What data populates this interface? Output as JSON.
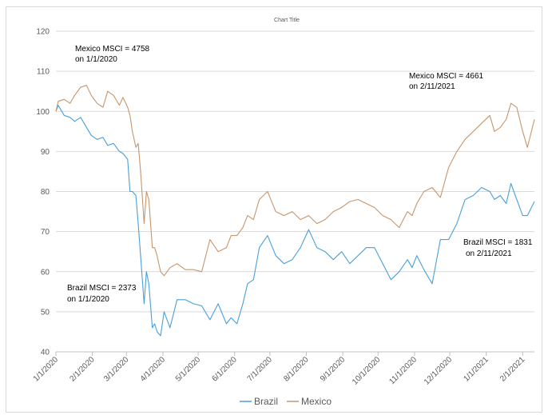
{
  "chart_data": {
    "type": "line",
    "title": "Chart Title",
    "xlabel": "",
    "ylabel": "",
    "ylim": [
      40,
      120
    ],
    "yticks": [
      40,
      50,
      60,
      70,
      80,
      90,
      100,
      110,
      120
    ],
    "x_tick_labels": [
      "1/1/2020",
      "2/1/2020",
      "3/1/2020",
      "4/1/2020",
      "5/1/2020",
      "6/1/2020",
      "7/1/2020",
      "8/1/2020",
      "9/1/2020",
      "10/1/2020",
      "11/1/2020",
      "12/1/2020",
      "1/1/2021",
      "2/1/2021"
    ],
    "x_start": "2020-01-01",
    "x_end": "2021-02-11",
    "grid": true,
    "legend_position": "bottom",
    "colors": {
      "Brazil": "#4a9fd8",
      "Mexico": "#c8956a"
    },
    "series": [
      {
        "name": "Brazil",
        "x": [
          "2020-01-01",
          "2020-01-03",
          "2020-01-08",
          "2020-01-13",
          "2020-01-17",
          "2020-01-22",
          "2020-01-27",
          "2020-01-31",
          "2020-02-05",
          "2020-02-10",
          "2020-02-14",
          "2020-02-19",
          "2020-02-24",
          "2020-02-27",
          "2020-03-02",
          "2020-03-04",
          "2020-03-06",
          "2020-03-09",
          "2020-03-11",
          "2020-03-13",
          "2020-03-16",
          "2020-03-18",
          "2020-03-20",
          "2020-03-23",
          "2020-03-25",
          "2020-03-27",
          "2020-03-30",
          "2020-04-02",
          "2020-04-07",
          "2020-04-13",
          "2020-04-20",
          "2020-04-27",
          "2020-05-04",
          "2020-05-11",
          "2020-05-18",
          "2020-05-25",
          "2020-05-29",
          "2020-06-03",
          "2020-06-08",
          "2020-06-12",
          "2020-06-17",
          "2020-06-22",
          "2020-06-29",
          "2020-07-06",
          "2020-07-13",
          "2020-07-20",
          "2020-07-27",
          "2020-08-03",
          "2020-08-10",
          "2020-08-17",
          "2020-08-24",
          "2020-08-31",
          "2020-09-07",
          "2020-09-14",
          "2020-09-21",
          "2020-09-28",
          "2020-10-05",
          "2020-10-12",
          "2020-10-19",
          "2020-10-26",
          "2020-10-30",
          "2020-11-03",
          "2020-11-09",
          "2020-11-16",
          "2020-11-23",
          "2020-11-30",
          "2020-12-07",
          "2020-12-14",
          "2020-12-21",
          "2020-12-28",
          "2021-01-04",
          "2021-01-08",
          "2021-01-13",
          "2021-01-18",
          "2021-01-22",
          "2021-01-27",
          "2021-02-01",
          "2021-02-05",
          "2021-02-11"
        ],
        "values": [
          100,
          101.5,
          99,
          98.5,
          97.5,
          98.5,
          96,
          94,
          93,
          93.5,
          91.5,
          92,
          90,
          89.5,
          88,
          80,
          80,
          79,
          72,
          64,
          52,
          60,
          57,
          46,
          47,
          45,
          44,
          50,
          46,
          53,
          53,
          52,
          51.5,
          48,
          52,
          47,
          48.5,
          47,
          52,
          57,
          58,
          66,
          69,
          64,
          62,
          63,
          66,
          70.5,
          66,
          65,
          63,
          65,
          62,
          64,
          66,
          66,
          62,
          58,
          60,
          63,
          61,
          64,
          60.5,
          57,
          68,
          68,
          72,
          78,
          79,
          81,
          80,
          78,
          79,
          77,
          82,
          78,
          74,
          74,
          77.5
        ]
      },
      {
        "name": "Mexico",
        "x": [
          "2020-01-01",
          "2020-01-03",
          "2020-01-08",
          "2020-01-13",
          "2020-01-17",
          "2020-01-22",
          "2020-01-27",
          "2020-01-31",
          "2020-02-05",
          "2020-02-10",
          "2020-02-14",
          "2020-02-19",
          "2020-02-24",
          "2020-02-27",
          "2020-03-02",
          "2020-03-04",
          "2020-03-06",
          "2020-03-09",
          "2020-03-11",
          "2020-03-13",
          "2020-03-16",
          "2020-03-18",
          "2020-03-20",
          "2020-03-23",
          "2020-03-25",
          "2020-03-27",
          "2020-03-30",
          "2020-04-02",
          "2020-04-07",
          "2020-04-13",
          "2020-04-20",
          "2020-04-27",
          "2020-05-04",
          "2020-05-11",
          "2020-05-18",
          "2020-05-25",
          "2020-05-29",
          "2020-06-03",
          "2020-06-08",
          "2020-06-12",
          "2020-06-17",
          "2020-06-22",
          "2020-06-29",
          "2020-07-06",
          "2020-07-13",
          "2020-07-20",
          "2020-07-27",
          "2020-08-03",
          "2020-08-10",
          "2020-08-17",
          "2020-08-24",
          "2020-08-31",
          "2020-09-07",
          "2020-09-14",
          "2020-09-21",
          "2020-09-28",
          "2020-10-05",
          "2020-10-12",
          "2020-10-19",
          "2020-10-26",
          "2020-10-30",
          "2020-11-03",
          "2020-11-09",
          "2020-11-16",
          "2020-11-23",
          "2020-11-30",
          "2020-12-07",
          "2020-12-14",
          "2020-12-21",
          "2020-12-28",
          "2021-01-04",
          "2021-01-08",
          "2021-01-13",
          "2021-01-18",
          "2021-01-22",
          "2021-01-27",
          "2021-02-01",
          "2021-02-05",
          "2021-02-11"
        ],
        "values": [
          100,
          102.5,
          103,
          102,
          104,
          106,
          106.5,
          104,
          102,
          101,
          105,
          104,
          101.5,
          103.5,
          101,
          99,
          95,
          91,
          92,
          85,
          72,
          80,
          78,
          66,
          66,
          64,
          60,
          59,
          61,
          62,
          60.5,
          60.5,
          60,
          68,
          65,
          66,
          69,
          69,
          71,
          74,
          73,
          78,
          80,
          75,
          74,
          75,
          73,
          74,
          72,
          73,
          75,
          76,
          77.5,
          78,
          77,
          76,
          74,
          73,
          71,
          75,
          74,
          77,
          80,
          81,
          78.5,
          86,
          90,
          93,
          95,
          97,
          99,
          95,
          96,
          98,
          102,
          101,
          95,
          91,
          98
        ]
      }
    ],
    "annotations": [
      {
        "lines": [
          "Mexico MSCI = 4758",
          "on 1/1/2020"
        ]
      },
      {
        "lines": [
          "Mexico MSCI = 4661",
          "on 2/11/2021"
        ]
      },
      {
        "lines": [
          "Brazil MSCI = 2373",
          "on 1/1/2020"
        ]
      },
      {
        "lines": [
          "Brazil MSCI = 1831",
          "on 2/11/2021"
        ]
      }
    ]
  }
}
